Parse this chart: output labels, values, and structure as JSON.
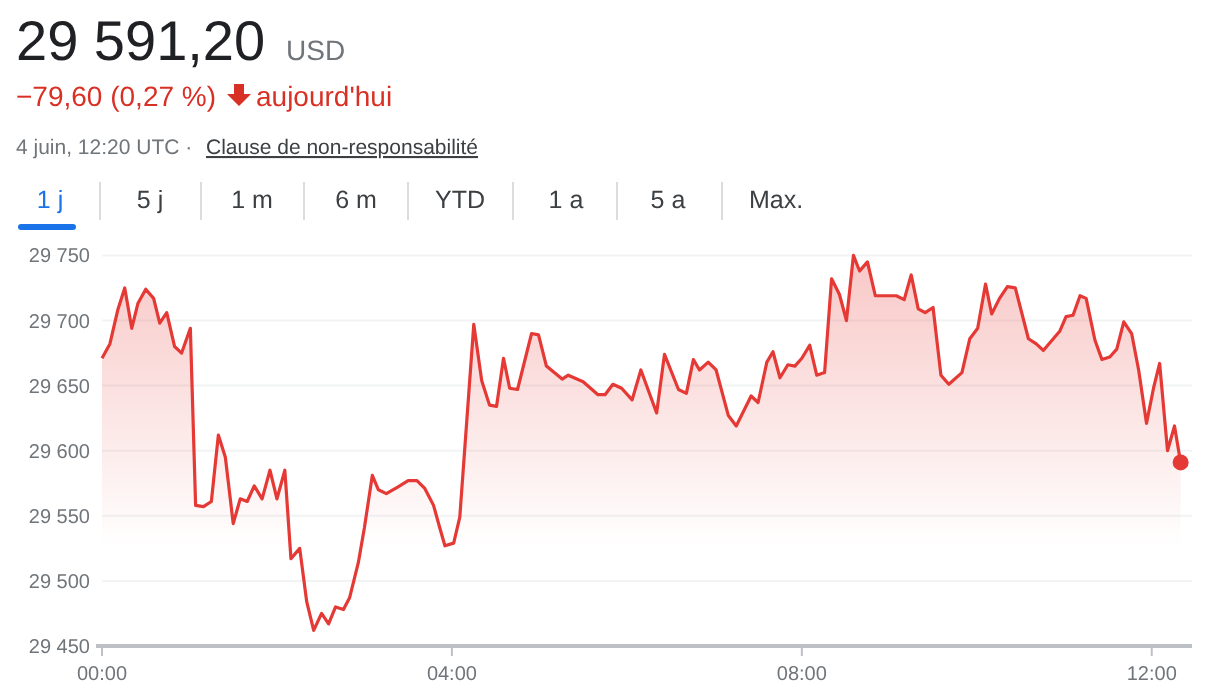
{
  "chart_data": {
    "type": "area",
    "title": "29 591,20",
    "annotations": [
      "USD",
      "−79,60 (0,27 %)",
      "aujourd'hui",
      "4 juin, 12:20 UTC ·",
      "Clause de non-responsabilité",
      "1 j",
      "5 j",
      "1 m",
      "6 m",
      "YTD",
      "1 a",
      "5 a",
      "Max."
    ],
    "xlim": [
      0,
      12.46
    ],
    "xticks": [
      {
        "value": 0,
        "label": "00:00"
      },
      {
        "value": 4,
        "label": "04:00"
      },
      {
        "value": 8,
        "label": "08:00"
      },
      {
        "value": 12,
        "label": "12:00"
      }
    ],
    "ylim": [
      29450,
      29750
    ],
    "yticks": [
      {
        "value": 29450,
        "label": "29 450"
      },
      {
        "value": 29500,
        "label": "29 500"
      },
      {
        "value": 29550,
        "label": "29 550"
      },
      {
        "value": 29600,
        "label": "29 600"
      },
      {
        "value": 29650,
        "label": "29 650"
      },
      {
        "value": 29700,
        "label": "29 700"
      },
      {
        "value": 29750,
        "label": "29 750"
      }
    ],
    "grid": "y",
    "series": [
      {
        "color": "#e53935",
        "marker": "none",
        "x": [
          0,
          0.09,
          0.18,
          0.26,
          0.34,
          0.41,
          0.5,
          0.59,
          0.66,
          0.74,
          0.83,
          0.91,
          1.01,
          1.07,
          1.16,
          1.25,
          1.33,
          1.41,
          1.5,
          1.58,
          1.66,
          1.74,
          1.83,
          1.92,
          2,
          2.09,
          2.16,
          2.26,
          2.34,
          2.42,
          2.51,
          2.59,
          2.67,
          2.76,
          2.83,
          2.93,
          3,
          3.09,
          3.16,
          3.25,
          3.38,
          3.5,
          3.6,
          3.69,
          3.79,
          3.86,
          3.92,
          4.02,
          4.09,
          4.25,
          4.34,
          4.43,
          4.51,
          4.59,
          4.66,
          4.75,
          4.91,
          4.99,
          5.08,
          5.26,
          5.33,
          5.5,
          5.67,
          5.75,
          5.84,
          5.94,
          6.06,
          6.16,
          6.34,
          6.43,
          6.59,
          6.68,
          6.76,
          6.83,
          6.93,
          7.02,
          7.16,
          7.25,
          7.42,
          7.5,
          7.6,
          7.67,
          7.75,
          7.84,
          7.92,
          8,
          8.09,
          8.17,
          8.26,
          8.34,
          8.43,
          8.51,
          8.59,
          8.66,
          8.75,
          8.84,
          9.08,
          9.17,
          9.25,
          9.33,
          9.41,
          9.5,
          9.59,
          9.68,
          9.83,
          9.92,
          10.01,
          10.1,
          10.17,
          10.26,
          10.35,
          10.44,
          10.59,
          10.68,
          10.76,
          10.95,
          11.02,
          11.1,
          11.18,
          11.25,
          11.35,
          11.43,
          11.52,
          11.6,
          11.68,
          11.77,
          11.85,
          11.94,
          12.02,
          12.09,
          12.18,
          12.26,
          12.33
        ],
        "values": [
          29671,
          29682,
          29708,
          29725,
          29694,
          29713,
          29724,
          29717,
          29698,
          29706,
          29680,
          29675,
          29694,
          29558,
          29557,
          29561,
          29612,
          29595,
          29544,
          29563,
          29561,
          29573,
          29563,
          29585,
          29563,
          29585,
          29517,
          29525,
          29484,
          29462,
          29475,
          29467,
          29480,
          29478,
          29487,
          29514,
          29541,
          29581,
          29570,
          29567,
          29572,
          29577,
          29577,
          29571,
          29558,
          29541,
          29527,
          29529,
          29549,
          29697,
          29654,
          29635,
          29634,
          29671,
          29648,
          29647,
          29690,
          29689,
          29665,
          29655,
          29658,
          29653,
          29643,
          29643,
          29651,
          29648,
          29639,
          29662,
          29629,
          29674,
          29647,
          29644,
          29670,
          29662,
          29668,
          29662,
          29627,
          29619,
          29642,
          29637,
          29668,
          29676,
          29656,
          29666,
          29665,
          29671,
          29681,
          29658,
          29660,
          29732,
          29720,
          29700,
          29750,
          29738,
          29745,
          29719,
          29719,
          29716,
          29735,
          29709,
          29706,
          29710,
          29658,
          29651,
          29660,
          29686,
          29694,
          29728,
          29705,
          29717,
          29726,
          29725,
          29686,
          29682,
          29677,
          29692,
          29703,
          29704,
          29719,
          29717,
          29685,
          29670,
          29672,
          29678,
          29699,
          29690,
          29662,
          29621,
          29648,
          29667,
          29600,
          29619,
          29591
        ]
      },
      {
        "type": "scatter",
        "color": "#e53935",
        "marker": "circle",
        "x": [
          12.33
        ],
        "values": [
          29591
        ]
      }
    ]
  }
}
